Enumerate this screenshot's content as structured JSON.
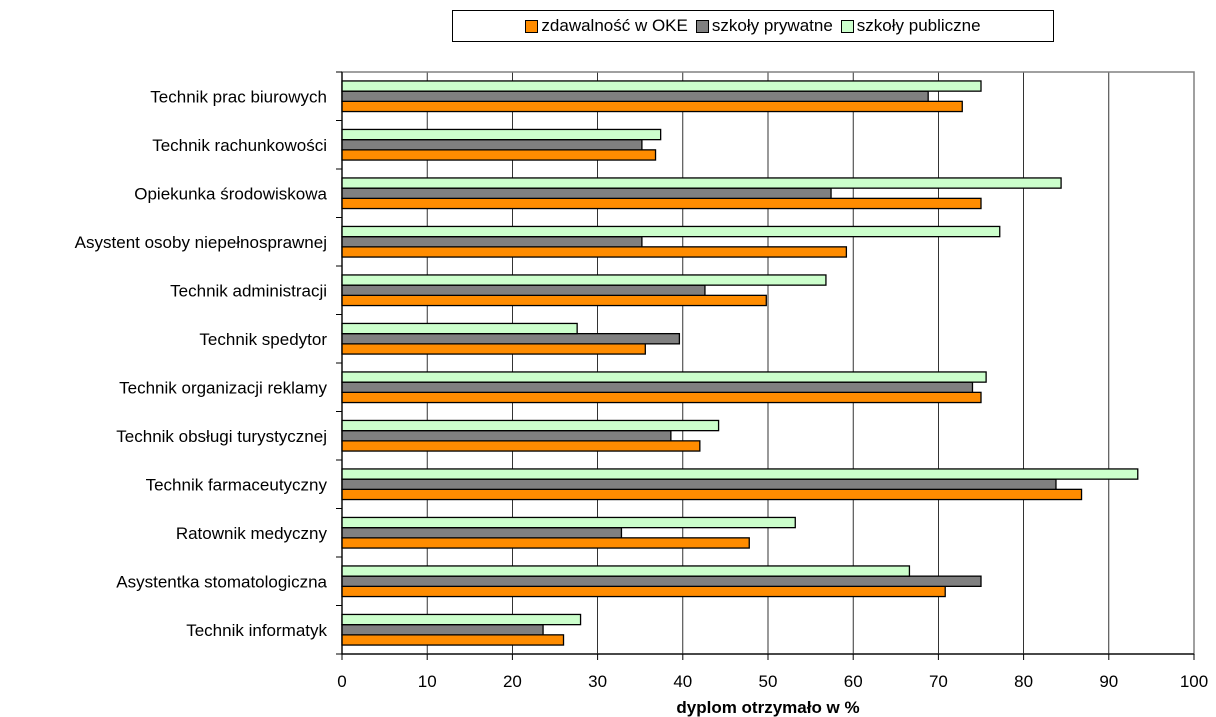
{
  "chart_data": {
    "type": "bar",
    "orientation": "horizontal",
    "categories": [
      "Technik prac biurowych",
      "Technik rachunkowości",
      "Opiekunka środowiskowa",
      "Asystent osoby niepełnosprawnej",
      "Technik administracji",
      "Technik spedytor",
      "Technik organizacji reklamy",
      "Technik obsługi turystycznej",
      "Technik farmaceutyczny",
      "Ratownik medyczny",
      "Asystentka stomatologiczna",
      "Technik informatyk"
    ],
    "series": [
      {
        "name": "zdawalność w OKE",
        "color": "#ff8c00",
        "values": [
          72.8,
          36.8,
          75.0,
          59.2,
          49.8,
          35.6,
          75.0,
          42.0,
          86.8,
          47.8,
          70.8,
          26.0
        ]
      },
      {
        "name": "szkoły prywatne",
        "color": "#808080",
        "values": [
          68.8,
          35.2,
          57.4,
          35.2,
          42.6,
          39.6,
          74.0,
          38.6,
          83.8,
          32.8,
          75.0,
          23.6
        ]
      },
      {
        "name": "szkoły publiczne",
        "color": "#ccffcc",
        "values": [
          75.0,
          37.4,
          84.4,
          77.2,
          56.8,
          27.6,
          75.6,
          44.2,
          93.4,
          53.2,
          66.6,
          28.0
        ]
      }
    ],
    "xlabel": "dyplom otrzymało w %",
    "xlim": [
      0,
      100
    ],
    "xticks": [
      "0",
      "10",
      "20",
      "30",
      "40",
      "50",
      "60",
      "70",
      "80",
      "90",
      "100"
    ],
    "grid": true,
    "legend_position": "top"
  }
}
